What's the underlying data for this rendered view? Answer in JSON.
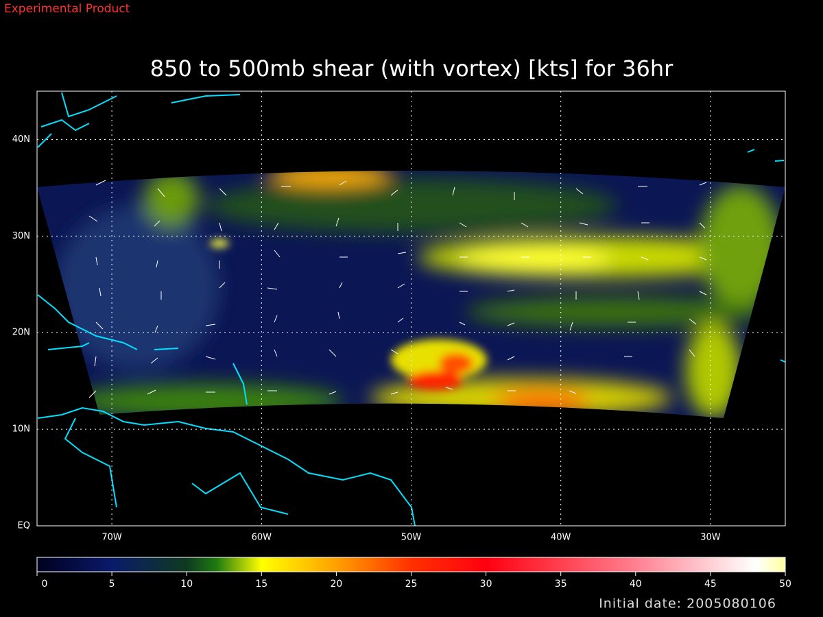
{
  "header": {
    "note": "Experimental Product",
    "title": "850 to 500mb shear (with vortex) [kts] for 36hr"
  },
  "map": {
    "lon_range": [
      -75,
      -25
    ],
    "lat_range": [
      0,
      45
    ],
    "lon_ticks": [
      {
        "value": -70,
        "label": "70W"
      },
      {
        "value": -60,
        "label": "60W"
      },
      {
        "value": -50,
        "label": "50W"
      },
      {
        "value": -40,
        "label": "40W"
      },
      {
        "value": -30,
        "label": "30W"
      }
    ],
    "lat_ticks": [
      {
        "value": 0,
        "label": "EQ"
      },
      {
        "value": 10,
        "label": "10N"
      },
      {
        "value": 20,
        "label": "20N"
      },
      {
        "value": 30,
        "label": "30N"
      },
      {
        "value": 40,
        "label": "40N"
      }
    ]
  },
  "colorbar": {
    "range": [
      0,
      50
    ],
    "ticks": [
      0,
      5,
      10,
      15,
      20,
      25,
      30,
      35,
      40,
      45,
      50
    ]
  },
  "footer": {
    "initial_date": "Initial date: 2005080106"
  }
}
